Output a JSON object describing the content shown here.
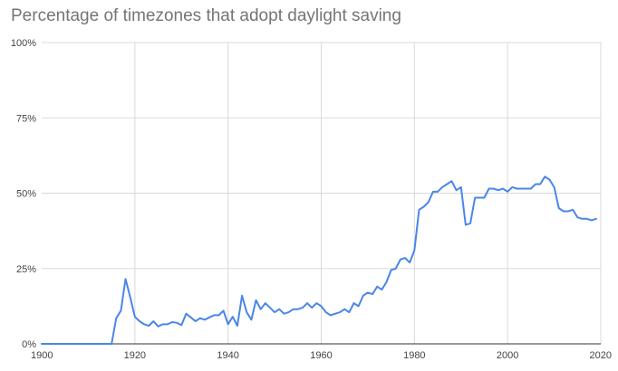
{
  "chart_data": {
    "type": "line",
    "title": "Percentage of timezones that adopt daylight saving",
    "xlabel": "",
    "ylabel": "",
    "xlim": [
      1900,
      2020
    ],
    "ylim": [
      0,
      100
    ],
    "x_ticks": [
      1900,
      1920,
      1940,
      1960,
      1980,
      2000,
      2020
    ],
    "y_ticks": [
      0,
      25,
      50,
      75,
      100
    ],
    "x_tick_labels": [
      "1900",
      "1920",
      "1940",
      "1960",
      "1980",
      "2000",
      "2020"
    ],
    "y_tick_labels": [
      "0%",
      "25%",
      "50%",
      "75%",
      "100%"
    ],
    "grid": true,
    "series": [
      {
        "color": "#4a86e8",
        "points": [
          [
            1900,
            0
          ],
          [
            1901,
            0
          ],
          [
            1902,
            0
          ],
          [
            1903,
            0
          ],
          [
            1904,
            0
          ],
          [
            1905,
            0
          ],
          [
            1906,
            0
          ],
          [
            1907,
            0
          ],
          [
            1908,
            0
          ],
          [
            1909,
            0
          ],
          [
            1910,
            0
          ],
          [
            1911,
            0
          ],
          [
            1912,
            0
          ],
          [
            1913,
            0
          ],
          [
            1914,
            0
          ],
          [
            1915,
            0
          ],
          [
            1916,
            8.5
          ],
          [
            1917,
            11
          ],
          [
            1918,
            21.5
          ],
          [
            1919,
            15.5
          ],
          [
            1920,
            9
          ],
          [
            1921,
            7.5
          ],
          [
            1922,
            6.5
          ],
          [
            1923,
            6
          ],
          [
            1924,
            7.5
          ],
          [
            1925,
            5.8
          ],
          [
            1926,
            6.5
          ],
          [
            1927,
            6.5
          ],
          [
            1928,
            7.2
          ],
          [
            1929,
            7
          ],
          [
            1930,
            6.2
          ],
          [
            1931,
            10
          ],
          [
            1932,
            8.8
          ],
          [
            1933,
            7.5
          ],
          [
            1934,
            8.5
          ],
          [
            1935,
            8
          ],
          [
            1936,
            8.8
          ],
          [
            1937,
            9.5
          ],
          [
            1938,
            9.5
          ],
          [
            1939,
            11
          ],
          [
            1940,
            6.5
          ],
          [
            1941,
            9
          ],
          [
            1942,
            6
          ],
          [
            1943,
            16
          ],
          [
            1944,
            10.5
          ],
          [
            1945,
            8
          ],
          [
            1946,
            14.5
          ],
          [
            1947,
            11.5
          ],
          [
            1948,
            13.5
          ],
          [
            1949,
            12
          ],
          [
            1950,
            10.5
          ],
          [
            1951,
            11.5
          ],
          [
            1952,
            10
          ],
          [
            1953,
            10.5
          ],
          [
            1954,
            11.5
          ],
          [
            1955,
            11.5
          ],
          [
            1956,
            12
          ],
          [
            1957,
            13.5
          ],
          [
            1958,
            12
          ],
          [
            1959,
            13.5
          ],
          [
            1960,
            12.5
          ],
          [
            1961,
            10.5
          ],
          [
            1962,
            9.5
          ],
          [
            1963,
            10
          ],
          [
            1964,
            10.5
          ],
          [
            1965,
            11.5
          ],
          [
            1966,
            10.5
          ],
          [
            1967,
            13.5
          ],
          [
            1968,
            12.5
          ],
          [
            1969,
            16
          ],
          [
            1970,
            17
          ],
          [
            1971,
            16.5
          ],
          [
            1972,
            19
          ],
          [
            1973,
            18
          ],
          [
            1974,
            20.5
          ],
          [
            1975,
            24.5
          ],
          [
            1976,
            25
          ],
          [
            1977,
            28
          ],
          [
            1978,
            28.5
          ],
          [
            1979,
            27
          ],
          [
            1980,
            31
          ],
          [
            1981,
            44.5
          ],
          [
            1982,
            45.5
          ],
          [
            1983,
            47
          ],
          [
            1984,
            50.5
          ],
          [
            1985,
            50.5
          ],
          [
            1986,
            52
          ],
          [
            1987,
            53
          ],
          [
            1988,
            54
          ],
          [
            1989,
            51
          ],
          [
            1990,
            52
          ],
          [
            1991,
            39.5
          ],
          [
            1992,
            40
          ],
          [
            1993,
            48.5
          ],
          [
            1994,
            48.5
          ],
          [
            1995,
            48.5
          ],
          [
            1996,
            51.5
          ],
          [
            1997,
            51.5
          ],
          [
            1998,
            51
          ],
          [
            1999,
            51.5
          ],
          [
            2000,
            50.5
          ],
          [
            2001,
            52
          ],
          [
            2002,
            51.5
          ],
          [
            2003,
            51.5
          ],
          [
            2004,
            51.5
          ],
          [
            2005,
            51.5
          ],
          [
            2006,
            53
          ],
          [
            2007,
            53
          ],
          [
            2008,
            55.5
          ],
          [
            2009,
            54.5
          ],
          [
            2010,
            52
          ],
          [
            2011,
            45
          ],
          [
            2012,
            44
          ],
          [
            2013,
            44
          ],
          [
            2014,
            44.5
          ],
          [
            2015,
            42
          ],
          [
            2016,
            41.5
          ],
          [
            2017,
            41.5
          ],
          [
            2018,
            41
          ],
          [
            2019,
            41.5
          ]
        ]
      }
    ]
  }
}
